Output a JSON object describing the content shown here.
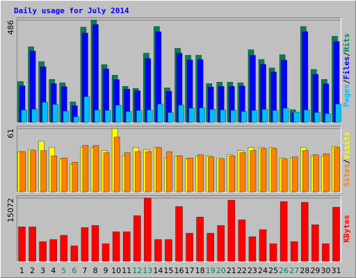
{
  "title": "Daily usage for July 2014",
  "chart_data": [
    {
      "type": "bar",
      "ylim": [
        0,
        486
      ],
      "yticks": [
        486
      ],
      "legend_separator": "/",
      "series": [
        {
          "name": "Hits",
          "color": "#00805c",
          "values": [
            196,
            360,
            290,
            206,
            190,
            100,
            453,
            486,
            276,
            226,
            173,
            163,
            330,
            456,
            166,
            353,
            320,
            320,
            186,
            193,
            193,
            190,
            346,
            300,
            260,
            323,
            63,
            456,
            253,
            206,
            410
          ]
        },
        {
          "name": "Files",
          "color": "#0000ff",
          "values": [
            176,
            340,
            266,
            186,
            172,
            82,
            425,
            465,
            256,
            205,
            160,
            152,
            305,
            431,
            150,
            330,
            298,
            300,
            170,
            173,
            173,
            175,
            320,
            277,
            241,
            297,
            47,
            432,
            230,
            185,
            385
          ]
        },
        {
          "name": "Pages",
          "color": "#00c0ff",
          "values": [
            62,
            66,
            98,
            88,
            56,
            30,
            125,
            62,
            60,
            85,
            55,
            60,
            62,
            90,
            50,
            85,
            70,
            72,
            65,
            62,
            60,
            55,
            60,
            65,
            60,
            70,
            52,
            62,
            50,
            45,
            90
          ]
        }
      ]
    },
    {
      "type": "bar",
      "ylim": [
        0,
        61
      ],
      "yticks": [
        61
      ],
      "legend_separator": "/",
      "series": [
        {
          "name": "Visits",
          "color": "#ffff00",
          "values": [
            39,
            41,
            49,
            43,
            32,
            27,
            43,
            43,
            40,
            61,
            35,
            43,
            41,
            43,
            33,
            35,
            32,
            35,
            35,
            33,
            36,
            40,
            43,
            43,
            43,
            33,
            33,
            43,
            35,
            35,
            44
          ]
        },
        {
          "name": "Sites",
          "color": "#ff8000",
          "values": [
            39,
            40,
            40,
            35,
            33,
            29,
            45,
            45,
            38,
            53,
            38,
            39,
            39,
            43,
            39,
            35,
            33,
            36,
            34,
            32,
            35,
            38,
            40,
            42,
            42,
            32,
            34,
            40,
            36,
            37,
            43
          ]
        }
      ]
    },
    {
      "type": "bar",
      "ylim": [
        0,
        15072
      ],
      "yticks": [
        15072
      ],
      "categories": [
        "1",
        "2",
        "3",
        "4",
        "5",
        "6",
        "7",
        "8",
        "9",
        "10",
        "11",
        "12",
        "13",
        "14",
        "15",
        "16",
        "17",
        "18",
        "19",
        "20",
        "21",
        "22",
        "23",
        "24",
        "25",
        "26",
        "27",
        "28",
        "29",
        "30",
        "31"
      ],
      "category_colors": [
        "#000000",
        "#000000",
        "#000000",
        "#000000",
        "#00805c",
        "#00805c",
        "#000000",
        "#000000",
        "#000000",
        "#000000",
        "#000000",
        "#00805c",
        "#00805c",
        "#000000",
        "#000000",
        "#000000",
        "#000000",
        "#000000",
        "#00805c",
        "#00805c",
        "#000000",
        "#000000",
        "#000000",
        "#000000",
        "#000000",
        "#00805c",
        "#00805c",
        "#000000",
        "#000000",
        "#000000",
        "#000000"
      ],
      "series": [
        {
          "name": "KBytes",
          "color": "#ff0000",
          "values": [
            8280,
            8280,
            4800,
            5300,
            6290,
            3810,
            8120,
            8610,
            4310,
            7120,
            7120,
            10930,
            15072,
            5300,
            5300,
            13080,
            6790,
            10600,
            6790,
            8610,
            14570,
            9940,
            5960,
            7620,
            4310,
            14240,
            4800,
            14080,
            8780,
            4310,
            12920
          ]
        }
      ]
    }
  ]
}
